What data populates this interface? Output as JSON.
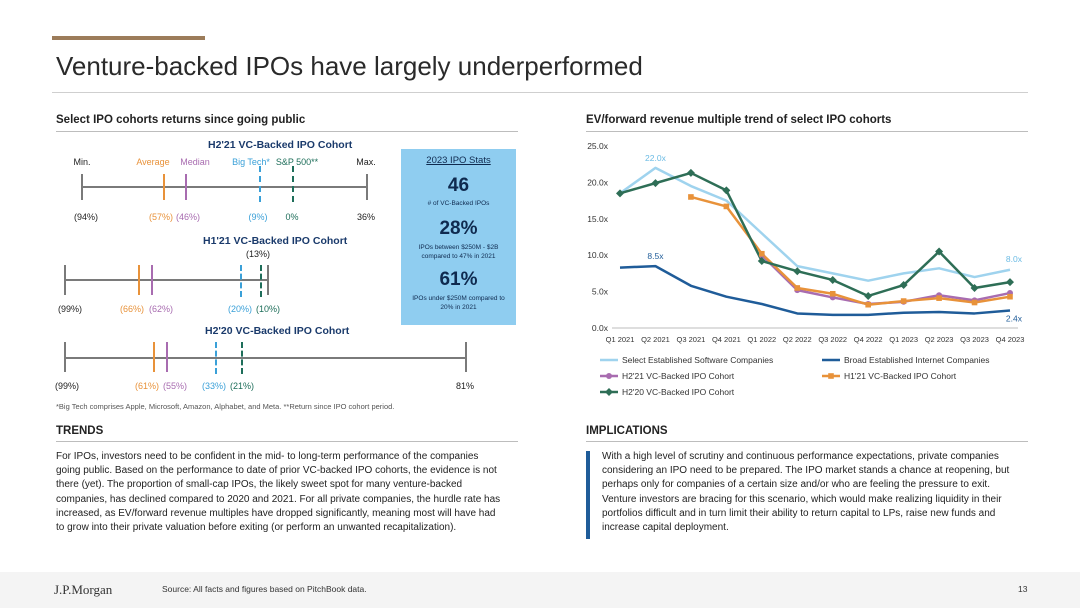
{
  "slide": {
    "title": "Venture-backed IPOs have largely underperformed",
    "page_number": "13",
    "source": "Source: All facts and figures based on PitchBook data.",
    "logo_text": "J.P.Morgan"
  },
  "colors": {
    "average": "#e8923a",
    "median": "#a86cb0",
    "big_tech": "#3aa0d8",
    "sp500": "#1e6e5a",
    "accent": "#9c7c5a"
  },
  "cohorts_section": {
    "heading": "Select IPO cohorts returns since going public",
    "legend": {
      "min": "Min.",
      "average": "Average",
      "median": "Median",
      "big_tech": "Big Tech*",
      "sp500": "S&P 500**",
      "max": "Max."
    },
    "cohorts": [
      {
        "title": "H2'21 VC-Backed IPO Cohort",
        "min": "(94%)",
        "average": "(57%)",
        "median": "(46%)",
        "big_tech": "(9%)",
        "sp500": "0%",
        "max": "36%"
      },
      {
        "title": "H1'21 VC-Backed IPO Cohort",
        "min": "(99%)",
        "average": "(66%)",
        "median": "(62%)",
        "big_tech": "(20%)",
        "sp500": "(10%)",
        "max": "(13%)"
      },
      {
        "title": "H2'20 VC-Backed IPO Cohort",
        "min": "(99%)",
        "average": "(61%)",
        "median": "(55%)",
        "big_tech": "(33%)",
        "sp500": "(21%)",
        "max": "81%"
      }
    ],
    "footnote": "*Big Tech comprises Apple, Microsoft, Amazon, Alphabet, and Meta. **Return since IPO cohort period."
  },
  "stats_box": {
    "title": "2023 IPO Stats",
    "stats": [
      {
        "value": "46",
        "desc": "# of VC-Backed IPOs"
      },
      {
        "value": "28%",
        "desc": "IPOs between $250M - $2B compared to 47% in 2021"
      },
      {
        "value": "61%",
        "desc": "IPOs under $250M compared to 20% in 2021"
      }
    ]
  },
  "trends": {
    "heading": "TRENDS",
    "text": "For IPOs, investors need to be confident in the mid- to long-term performance of the companies going public. Based on the performance to date of prior VC-backed IPO cohorts, the evidence is not there (yet). The proportion of small-cap IPOs, the likely sweet spot for many venture-backed companies, has declined compared to 2020 and 2021. For all private companies, the hurdle rate has increased, as EV/forward revenue multiples have dropped significantly, meaning most will have had to grow into their private valuation before exiting (or perform an unwanted recapitalization)."
  },
  "implications": {
    "heading": "IMPLICATIONS",
    "text": "With a high level of scrutiny and continuous performance expectations, private companies considering an IPO need to be prepared. The IPO market stands a chance at reopening, but perhaps only for companies of a certain size and/or who are feeling the pressure to exit. Venture investors are bracing for this scenario, which would make realizing liquidity in their portfolios difficult and in turn limit their ability to return capital to LPs, raise new funds and increase capital deployment."
  },
  "chart_data": {
    "type": "line",
    "title": "EV/forward revenue multiple trend of select IPO cohorts",
    "x": [
      "Q1 2021",
      "Q2 2021",
      "Q3 2021",
      "Q4 2021",
      "Q1 2022",
      "Q2 2022",
      "Q3 2022",
      "Q4 2022",
      "Q1 2023",
      "Q2 2023",
      "Q3 2023",
      "Q4 2023"
    ],
    "ylim": [
      0,
      25
    ],
    "yticks": [
      "0.0x",
      "5.0x",
      "10.0x",
      "15.0x",
      "20.0x",
      "25.0x"
    ],
    "legend_position": "bottom",
    "series": [
      {
        "name": "Select Established Software Companies",
        "color": "#9fd3ee",
        "marker": "none",
        "values": [
          18.5,
          22.0,
          19.5,
          17.5,
          13.0,
          8.5,
          7.5,
          6.5,
          7.5,
          8.2,
          7.0,
          8.0
        ]
      },
      {
        "name": "Broad Established Internet Companies",
        "color": "#1f5c99",
        "marker": "none",
        "values": [
          8.3,
          8.5,
          5.8,
          4.3,
          3.3,
          2.0,
          1.8,
          1.8,
          2.1,
          2.2,
          2.0,
          2.4
        ]
      },
      {
        "name": "H2'21 VC-Backed IPO Cohort",
        "color": "#a86cb0",
        "marker": "circle",
        "values": [
          null,
          null,
          null,
          null,
          10.0,
          5.2,
          4.2,
          3.3,
          3.6,
          4.5,
          3.8,
          4.8
        ]
      },
      {
        "name": "H1'21 VC-Backed IPO Cohort",
        "color": "#e8923a",
        "marker": "square",
        "values": [
          null,
          null,
          18.0,
          16.7,
          10.2,
          5.5,
          4.7,
          3.2,
          3.7,
          4.1,
          3.5,
          4.3
        ]
      },
      {
        "name": "H2'20 VC-Backed IPO Cohort",
        "color": "#2e6e56",
        "marker": "diamond",
        "values": [
          18.5,
          19.9,
          21.3,
          18.9,
          9.2,
          7.8,
          6.6,
          4.4,
          5.9,
          10.5,
          5.5,
          6.3
        ]
      }
    ],
    "annotations": [
      {
        "text": "22.0x",
        "series": 0,
        "index": 1
      },
      {
        "text": "8.5x",
        "series": 1,
        "index": 1
      },
      {
        "text": "8.0x",
        "series": 0,
        "index": 11
      },
      {
        "text": "2.4x",
        "series": 1,
        "index": 11
      }
    ]
  }
}
